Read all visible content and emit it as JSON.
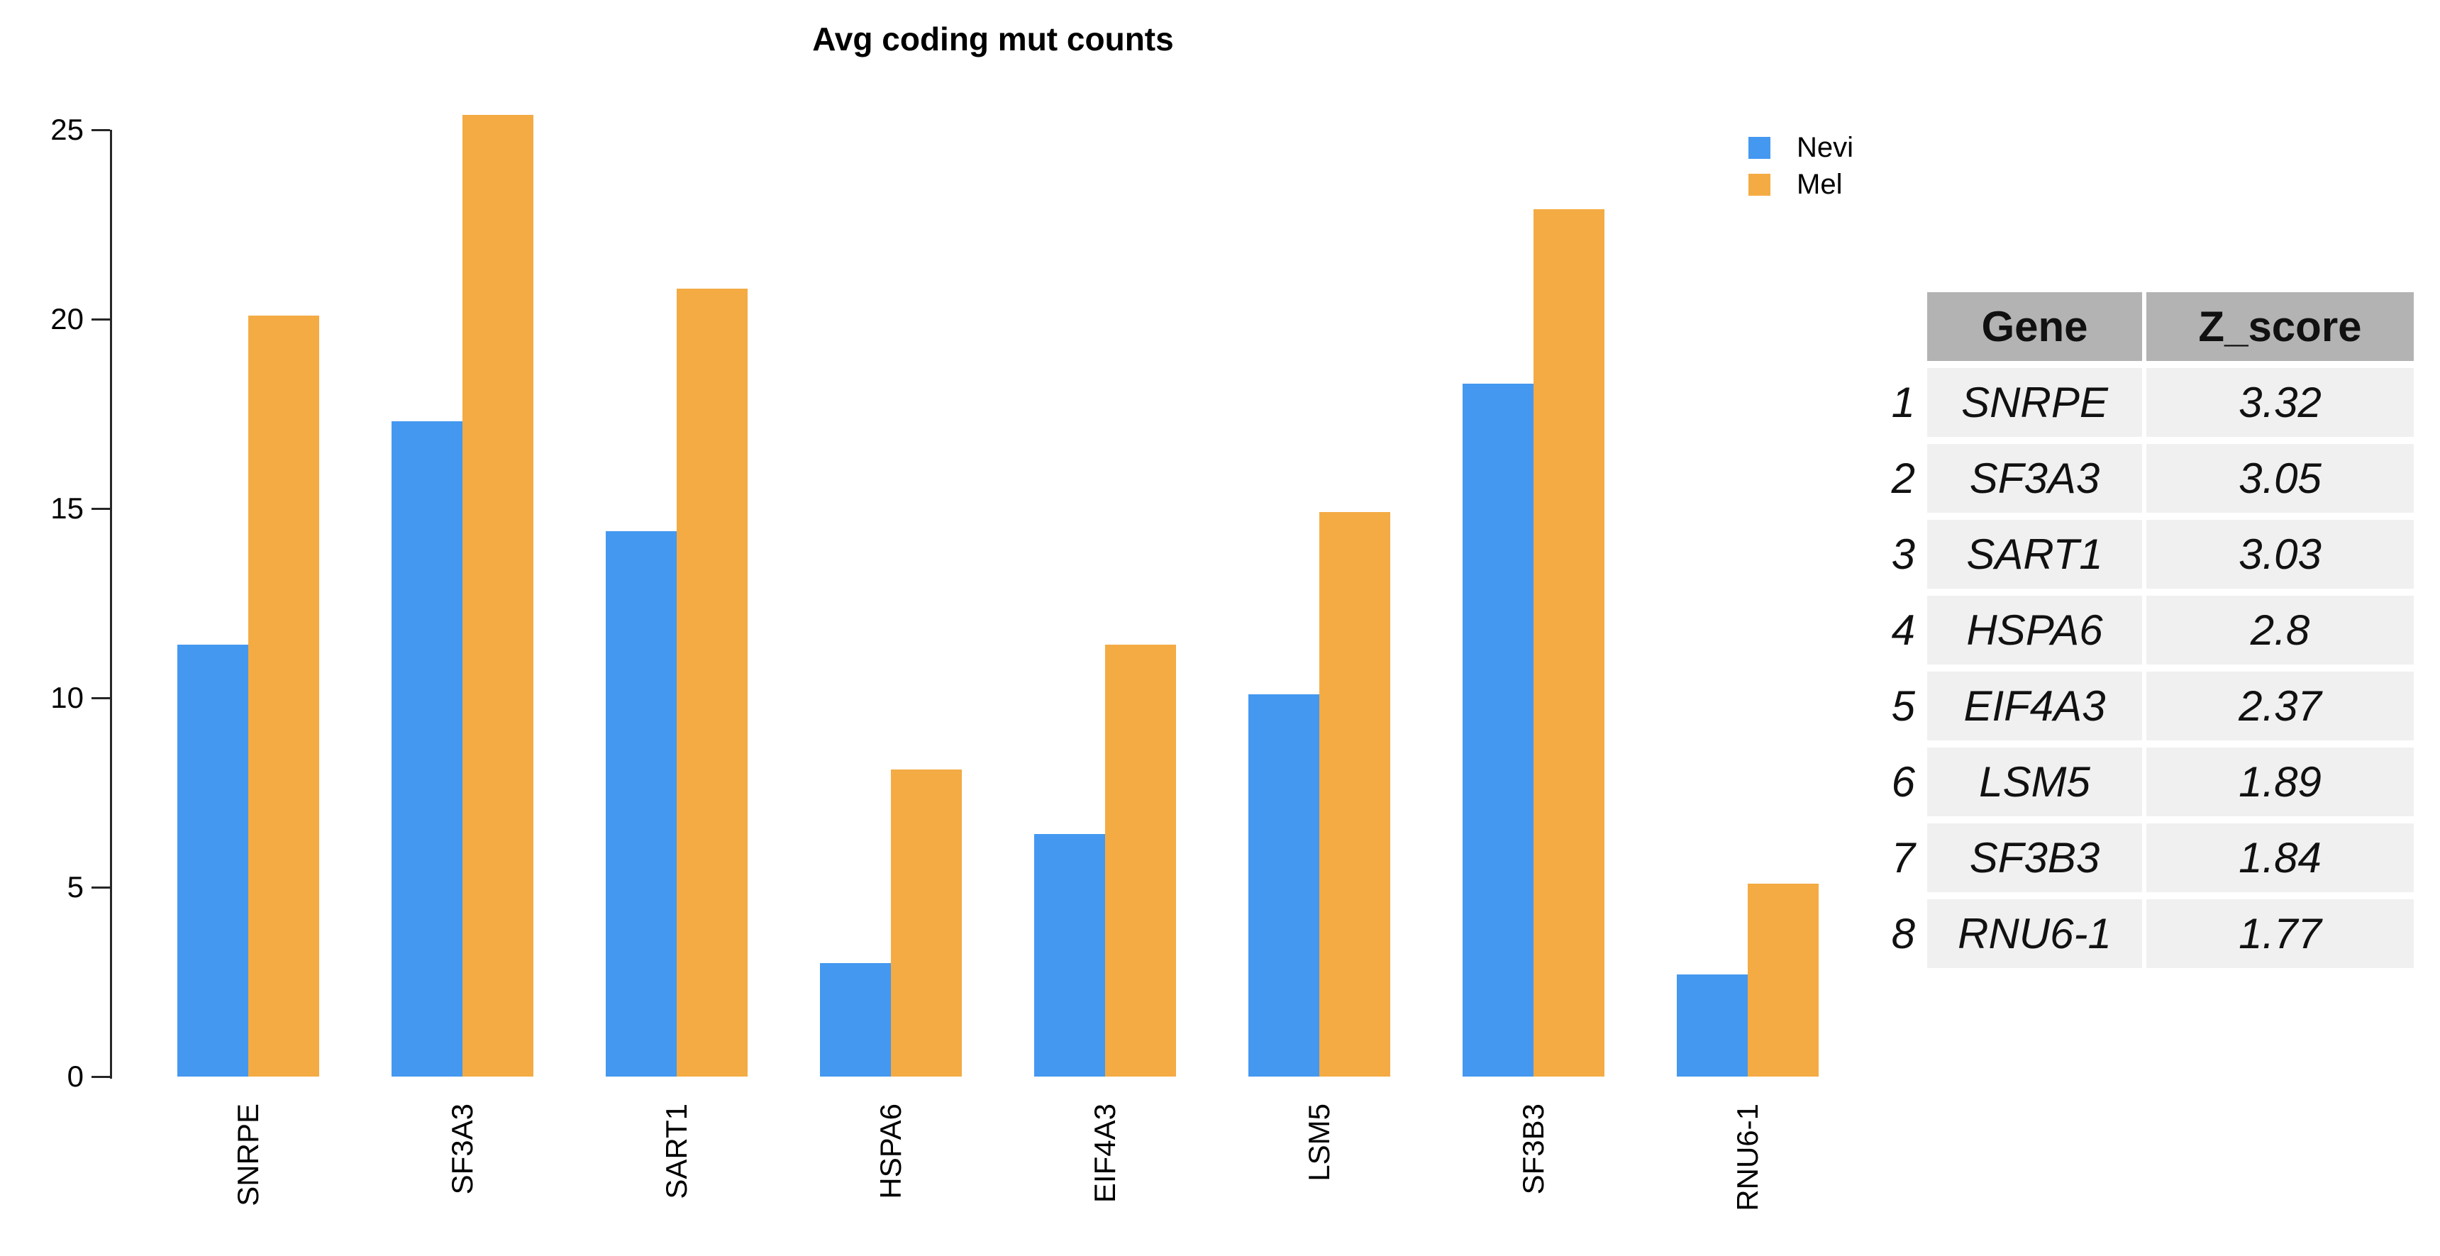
{
  "chart_data": {
    "type": "bar",
    "title": "Avg coding mut counts",
    "categories": [
      "SNRPE",
      "SF3A3",
      "SART1",
      "HSPA6",
      "EIF4A3",
      "LSM5",
      "SF3B3",
      "RNU6-1"
    ],
    "series": [
      {
        "name": "Nevi",
        "color": "#4498F0",
        "values": [
          11.4,
          17.3,
          14.4,
          3.0,
          6.4,
          10.1,
          18.3,
          2.7
        ]
      },
      {
        "name": "Mel",
        "color": "#F4AB44",
        "values": [
          20.1,
          25.4,
          20.8,
          8.1,
          11.4,
          14.9,
          22.9,
          5.1
        ]
      }
    ],
    "xlabel": "",
    "ylabel": "",
    "ylim": [
      0,
      25
    ],
    "yticks": [
      0,
      5,
      10,
      15,
      20,
      25
    ],
    "grid": false,
    "legend_position": "topright",
    "x_tick_label_rotation": 90
  },
  "legend": {
    "items": [
      {
        "label": "Nevi",
        "color": "#4498F0"
      },
      {
        "label": "Mel",
        "color": "#F4AB44"
      }
    ]
  },
  "table": {
    "headers": [
      "Gene",
      "Z_score"
    ],
    "rows": [
      {
        "index": "1",
        "gene": "SNRPE",
        "z_score": "3.32"
      },
      {
        "index": "2",
        "gene": "SF3A3",
        "z_score": "3.05"
      },
      {
        "index": "3",
        "gene": "SART1",
        "z_score": "3.03"
      },
      {
        "index": "4",
        "gene": "HSPA6",
        "z_score": "2.8"
      },
      {
        "index": "5",
        "gene": "EIF4A3",
        "z_score": "2.37"
      },
      {
        "index": "6",
        "gene": "LSM5",
        "z_score": "1.89"
      },
      {
        "index": "7",
        "gene": "SF3B3",
        "z_score": "1.84"
      },
      {
        "index": "8",
        "gene": "RNU6-1",
        "z_score": "1.77"
      }
    ]
  },
  "colors": {
    "nevi": "#4498F0",
    "mel": "#F4AB44",
    "axis": "#262626",
    "text": "#000000",
    "table_header_bg": "#B3B3B3",
    "table_row_bg": "#F0F0F0",
    "background": "#FFFFFF"
  }
}
